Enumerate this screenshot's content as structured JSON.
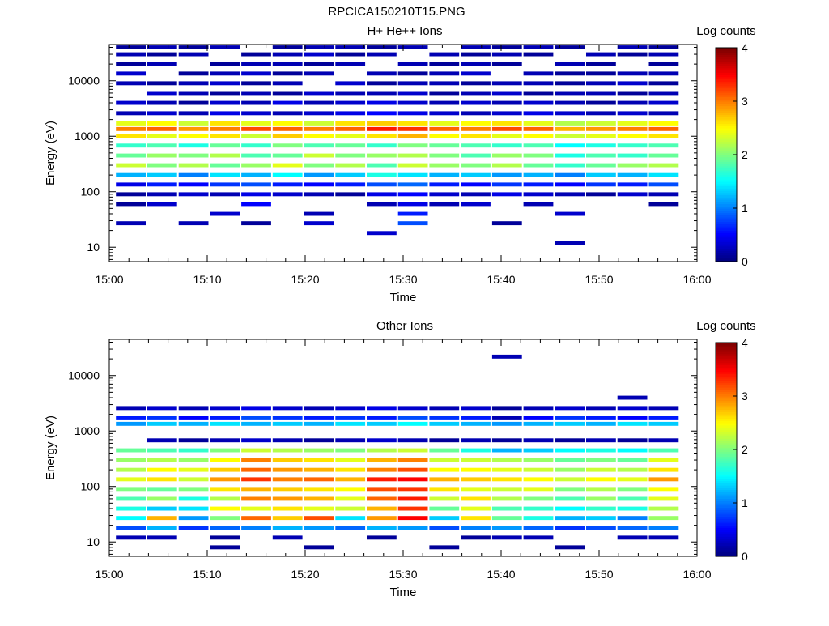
{
  "figure": {
    "title": "RPCICA150210T15.PNG"
  },
  "chart_data": [
    {
      "type": "heatmap",
      "title": "H+ He++ Ions",
      "xlabel": "Time",
      "ylabel": "Energy (eV)",
      "x_ticks": [
        "15:00",
        "15:10",
        "15:20",
        "15:30",
        "15:40",
        "15:50",
        "16:00"
      ],
      "x_range_minutes": [
        0,
        60
      ],
      "y_ticks": [
        "10",
        "100",
        "1000",
        "10000"
      ],
      "y_scale": "log",
      "y_range_eV": [
        5.5,
        45000
      ],
      "colorbar": {
        "label": "Log counts",
        "ticks": [
          "0",
          "1",
          "2",
          "3",
          "4"
        ],
        "range": [
          0,
          4
        ],
        "colormap": "jet"
      },
      "time_columns_minutes": [
        2.2,
        5.4,
        8.6,
        11.8,
        15.0,
        18.2,
        21.4,
        24.6,
        27.8,
        31.0,
        34.2,
        37.4,
        40.6,
        43.8,
        47.0,
        50.2,
        53.4,
        56.6
      ],
      "energy_bins_eV": [
        12,
        18,
        27,
        40,
        60,
        90,
        135,
        200,
        300,
        450,
        680,
        1000,
        1350,
        1700,
        2600,
        4000,
        6000,
        9000,
        13500,
        20000,
        30000,
        40000
      ],
      "log_counts": [
        [
          null,
          null,
          0.2,
          null,
          0.1,
          0.1,
          0.4,
          1.2,
          2.3,
          1.9,
          1.7,
          2.6,
          3.0,
          2.4,
          0.2,
          0.3,
          null,
          0.2,
          0.3,
          0.1,
          0.2,
          0.1
        ],
        [
          null,
          null,
          null,
          null,
          0.3,
          0.2,
          0.6,
          1.3,
          2.0,
          2.1,
          1.8,
          2.4,
          3.1,
          2.5,
          0.3,
          0.2,
          0.3,
          0.1,
          null,
          0.2,
          0.1,
          0.2
        ],
        [
          null,
          null,
          0.2,
          null,
          null,
          0.3,
          0.5,
          1.0,
          2.2,
          2.0,
          1.6,
          2.5,
          2.9,
          2.3,
          0.2,
          0.1,
          0.2,
          0.2,
          0.1,
          null,
          0.2,
          0.1
        ],
        [
          null,
          null,
          null,
          0.3,
          null,
          0.2,
          0.7,
          1.4,
          1.9,
          2.2,
          1.9,
          2.6,
          3.0,
          2.6,
          0.4,
          0.3,
          0.1,
          0.3,
          0.2,
          0.1,
          null,
          0.2
        ],
        [
          null,
          null,
          0.1,
          null,
          0.5,
          0.4,
          0.8,
          1.2,
          2.1,
          1.8,
          1.7,
          2.3,
          3.2,
          2.4,
          0.3,
          0.2,
          0.2,
          0.1,
          0.3,
          0.2,
          0.1,
          null
        ],
        [
          null,
          null,
          null,
          null,
          null,
          0.3,
          0.6,
          1.5,
          2.4,
          1.9,
          2.0,
          2.7,
          3.1,
          2.5,
          0.2,
          0.4,
          0.1,
          0.2,
          0.1,
          0.2,
          0.2,
          0.1
        ],
        [
          null,
          null,
          0.3,
          0.2,
          null,
          0.2,
          0.5,
          1.1,
          2.0,
          2.3,
          1.8,
          2.5,
          3.0,
          2.3,
          0.3,
          0.2,
          0.3,
          null,
          0.2,
          0.1,
          0.3,
          0.2
        ],
        [
          null,
          null,
          null,
          null,
          null,
          0.1,
          0.6,
          1.3,
          2.2,
          2.0,
          1.9,
          2.4,
          3.1,
          2.6,
          0.4,
          0.3,
          0.2,
          0.3,
          null,
          0.2,
          0.1,
          0.2
        ],
        [
          null,
          0.3,
          null,
          null,
          0.2,
          0.4,
          0.8,
          1.6,
          1.8,
          2.1,
          1.7,
          2.6,
          3.4,
          2.7,
          0.5,
          0.4,
          0.2,
          0.1,
          0.2,
          null,
          0.2,
          0.1
        ],
        [
          null,
          null,
          0.8,
          0.6,
          0.4,
          0.5,
          0.9,
          1.4,
          2.3,
          2.2,
          2.0,
          2.8,
          3.3,
          2.6,
          0.4,
          0.3,
          0.3,
          0.2,
          0.1,
          0.2,
          null,
          0.2
        ],
        [
          null,
          null,
          null,
          null,
          0.2,
          0.3,
          0.6,
          1.2,
          2.1,
          2.0,
          1.9,
          2.5,
          3.1,
          2.4,
          0.3,
          0.2,
          0.1,
          0.2,
          0.2,
          0.1,
          0.2,
          null
        ],
        [
          null,
          null,
          null,
          null,
          0.3,
          0.2,
          0.5,
          1.3,
          2.0,
          1.8,
          1.8,
          2.6,
          3.0,
          2.5,
          0.2,
          0.3,
          0.2,
          0.1,
          0.3,
          0.2,
          0.1,
          0.2
        ],
        [
          null,
          null,
          0.1,
          null,
          null,
          0.4,
          0.7,
          1.1,
          2.2,
          2.1,
          1.7,
          2.4,
          3.2,
          2.6,
          0.3,
          0.2,
          0.3,
          0.2,
          null,
          0.1,
          0.2,
          0.1
        ],
        [
          null,
          null,
          null,
          null,
          0.2,
          0.3,
          0.6,
          1.2,
          1.9,
          2.0,
          1.8,
          2.5,
          3.1,
          2.4,
          0.4,
          0.3,
          0.1,
          0.2,
          0.2,
          null,
          0.1,
          0.2
        ],
        [
          0.2,
          null,
          null,
          0.3,
          null,
          0.2,
          0.5,
          1.0,
          1.7,
          1.6,
          1.5,
          2.3,
          2.8,
          2.2,
          0.3,
          0.2,
          0.2,
          0.1,
          0.1,
          0.2,
          null,
          0.1
        ],
        [
          null,
          null,
          null,
          null,
          null,
          0.1,
          0.7,
          1.3,
          1.9,
          1.8,
          1.6,
          2.4,
          2.9,
          2.3,
          0.2,
          0.1,
          0.2,
          0.2,
          0.1,
          0.1,
          0.2,
          null
        ],
        [
          null,
          null,
          null,
          null,
          null,
          0.3,
          0.6,
          1.2,
          2.1,
          1.7,
          1.7,
          2.5,
          3.0,
          2.4,
          0.3,
          0.2,
          0.1,
          0.3,
          0.2,
          null,
          0.1,
          0.2
        ],
        [
          null,
          null,
          null,
          null,
          0.1,
          0.2,
          0.8,
          1.4,
          2.2,
          1.9,
          1.8,
          2.6,
          3.1,
          2.5,
          0.2,
          0.3,
          0.2,
          0.1,
          0.2,
          0.1,
          0.2,
          0.1
        ]
      ]
    },
    {
      "type": "heatmap",
      "title": "Other Ions",
      "xlabel": "Time",
      "ylabel": "Energy (eV)",
      "x_ticks": [
        "15:00",
        "15:10",
        "15:20",
        "15:30",
        "15:40",
        "15:50",
        "16:00"
      ],
      "x_range_minutes": [
        0,
        60
      ],
      "y_ticks": [
        "10",
        "100",
        "1000",
        "10000"
      ],
      "y_scale": "log",
      "y_range_eV": [
        5.5,
        45000
      ],
      "colorbar": {
        "label": "Log counts",
        "ticks": [
          "0",
          "1",
          "2",
          "3",
          "4"
        ],
        "range": [
          0,
          4
        ],
        "colormap": "jet"
      },
      "time_columns_minutes": [
        2.2,
        5.4,
        8.6,
        11.8,
        15.0,
        18.2,
        21.4,
        24.6,
        27.8,
        31.0,
        34.2,
        37.4,
        40.6,
        43.8,
        47.0,
        50.2,
        53.4,
        56.6
      ],
      "energy_bins_eV": [
        8,
        12,
        18,
        27,
        40,
        60,
        90,
        135,
        200,
        300,
        450,
        680,
        1000,
        1350,
        1700,
        2600,
        4000,
        22000
      ],
      "log_counts": [
        [
          null,
          0.2,
          0.8,
          1.5,
          1.6,
          1.8,
          2.0,
          2.4,
          2.2,
          2.1,
          1.9,
          null,
          null,
          1.1,
          0.6,
          0.2,
          null,
          null
        ],
        [
          null,
          0.2,
          1.2,
          2.8,
          1.3,
          2.1,
          1.9,
          2.6,
          2.5,
          2.2,
          1.8,
          0.2,
          null,
          1.3,
          0.7,
          0.3,
          null,
          null
        ],
        [
          null,
          null,
          0.7,
          1.1,
          1.4,
          1.6,
          2.0,
          2.3,
          2.4,
          2.1,
          1.7,
          0.1,
          null,
          1.2,
          0.5,
          0.2,
          null,
          null
        ],
        [
          0.1,
          0.1,
          0.9,
          2.0,
          2.5,
          2.2,
          2.6,
          2.9,
          2.7,
          2.5,
          2.0,
          0.2,
          null,
          1.4,
          0.6,
          0.3,
          null,
          null
        ],
        [
          null,
          null,
          1.0,
          3.1,
          2.4,
          3.0,
          2.8,
          3.3,
          3.1,
          3.0,
          2.3,
          0.3,
          null,
          1.2,
          0.8,
          0.4,
          null,
          null
        ],
        [
          null,
          0.2,
          1.2,
          2.7,
          2.6,
          2.9,
          2.7,
          3.0,
          2.9,
          2.7,
          2.2,
          0.2,
          null,
          1.3,
          0.7,
          0.3,
          null,
          null
        ],
        [
          0.1,
          null,
          1.1,
          3.2,
          2.4,
          2.8,
          2.6,
          3.1,
          2.8,
          2.6,
          2.1,
          0.1,
          null,
          1.2,
          0.6,
          0.2,
          null,
          null
        ],
        [
          null,
          null,
          0.9,
          1.4,
          2.3,
          2.4,
          2.5,
          2.8,
          2.6,
          2.4,
          2.0,
          0.2,
          null,
          1.4,
          0.7,
          0.3,
          null,
          null
        ],
        [
          null,
          0.1,
          1.2,
          2.9,
          2.8,
          3.1,
          3.2,
          3.4,
          3.0,
          2.8,
          2.2,
          0.3,
          null,
          1.3,
          0.6,
          0.4,
          null,
          null
        ],
        [
          null,
          null,
          1.1,
          3.5,
          3.3,
          3.4,
          3.3,
          3.5,
          3.2,
          3.0,
          2.3,
          0.2,
          null,
          1.5,
          0.8,
          0.3,
          null,
          null
        ],
        [
          0.1,
          null,
          0.8,
          1.3,
          1.9,
          2.3,
          2.6,
          2.8,
          2.5,
          2.3,
          1.9,
          0.1,
          null,
          1.3,
          0.7,
          0.2,
          null,
          null
        ],
        [
          null,
          0.1,
          1.0,
          2.6,
          2.4,
          2.6,
          2.4,
          2.7,
          2.5,
          2.3,
          1.6,
          0.2,
          null,
          1.2,
          0.6,
          0.3,
          null,
          null
        ],
        [
          null,
          0.2,
          1.1,
          1.9,
          1.8,
          2.2,
          2.3,
          2.6,
          2.4,
          2.2,
          1.2,
          0.1,
          null,
          1.1,
          0.2,
          0.1,
          null,
          0.2
        ],
        [
          null,
          0.2,
          0.9,
          1.6,
          1.7,
          2.0,
          2.4,
          2.5,
          2.3,
          2.1,
          1.3,
          0.2,
          null,
          1.2,
          0.5,
          0.2,
          null,
          null
        ],
        [
          0.1,
          null,
          0.7,
          1.2,
          1.5,
          1.8,
          2.0,
          2.3,
          2.1,
          1.9,
          1.5,
          0.1,
          null,
          1.3,
          0.7,
          0.3,
          null,
          null
        ],
        [
          null,
          null,
          0.8,
          1.3,
          1.7,
          2.1,
          2.2,
          2.5,
          2.3,
          2.0,
          1.6,
          0.2,
          null,
          1.2,
          0.6,
          0.2,
          null,
          null
        ],
        [
          null,
          0.2,
          0.9,
          1.0,
          1.6,
          1.8,
          2.0,
          2.4,
          2.2,
          1.9,
          1.5,
          0.1,
          null,
          1.4,
          0.5,
          0.3,
          0.2,
          null
        ],
        [
          null,
          0.2,
          1.0,
          2.1,
          2.2,
          2.4,
          2.5,
          2.9,
          2.6,
          2.4,
          1.8,
          0.2,
          null,
          1.3,
          0.6,
          0.2,
          null,
          null
        ]
      ]
    }
  ]
}
